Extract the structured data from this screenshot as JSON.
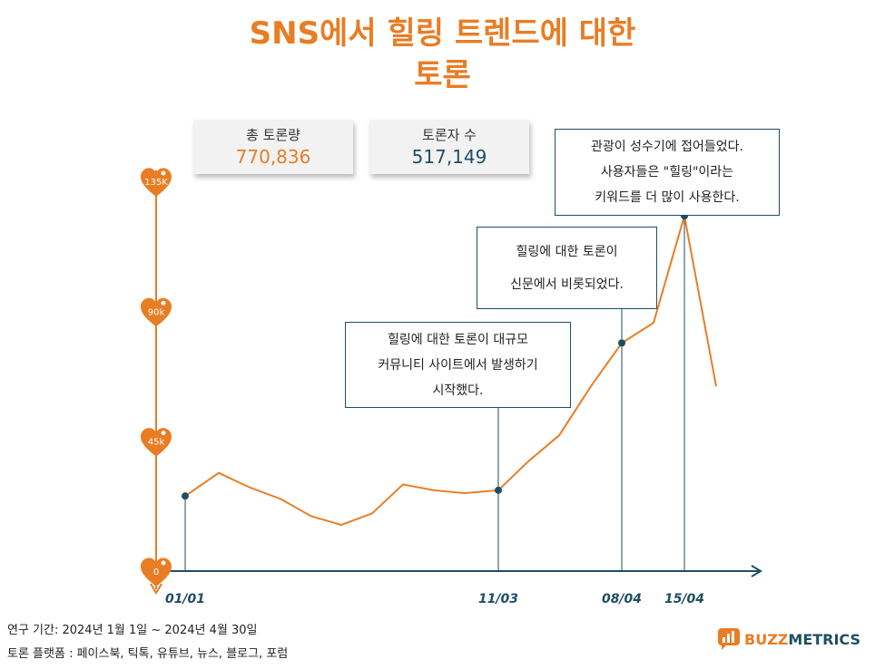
{
  "title": {
    "line1": "SNS에서 힐링 트렌드에 대한",
    "line2": "토론"
  },
  "stats": {
    "total_label": "총 토론량",
    "total_value": "770,836",
    "users_label": "토론자 수",
    "users_value": "517,149"
  },
  "callouts": {
    "c1": [
      "힐링에 대한 토론이 대규모",
      "커뮤니티 사이트에서 발생하기",
      "시작했다."
    ],
    "c2": [
      "힐링에 대한 토론이",
      "신문에서 비롯되었다."
    ],
    "c3": [
      "관광이 성수기에 접어들었다.",
      "사용자들은 \"힐링\"이라는",
      "키워드를 더 많이 사용한다."
    ]
  },
  "chart_data": {
    "type": "line",
    "ylim": [
      0,
      135000
    ],
    "yticks": [
      {
        "value": 0,
        "label": "0"
      },
      {
        "value": 45000,
        "label": "45k"
      },
      {
        "value": 90000,
        "label": "90k"
      },
      {
        "value": 135000,
        "label": "135K"
      }
    ],
    "x": [
      0,
      1,
      2,
      3,
      4,
      5,
      6,
      7,
      8,
      9,
      10,
      11,
      12,
      13,
      14,
      15,
      16,
      17
    ],
    "values": [
      26000,
      34000,
      29000,
      25000,
      19000,
      16000,
      20000,
      30000,
      28000,
      27000,
      28000,
      38000,
      47000,
      64000,
      79000,
      86000,
      123000,
      64000
    ],
    "x_labels": [
      {
        "index": 0,
        "label": "01/01"
      },
      {
        "index": 10,
        "label": "11/03"
      },
      {
        "index": 14,
        "label": "08/04"
      },
      {
        "index": 16,
        "label": "15/04"
      }
    ],
    "line_color": "#E87D24",
    "axis_color": "#1f4e63"
  },
  "footer": {
    "period": "연구 기간: 2024년 1월 1일 ~ 2024년 4월 30일",
    "platforms": "토론 플랫폼 : 페이스북, 틱톡, 유튜브, 뉴스, 블로그, 포럼"
  },
  "logo": {
    "buzz": "BUZZ",
    "metrics": "METRICS"
  }
}
